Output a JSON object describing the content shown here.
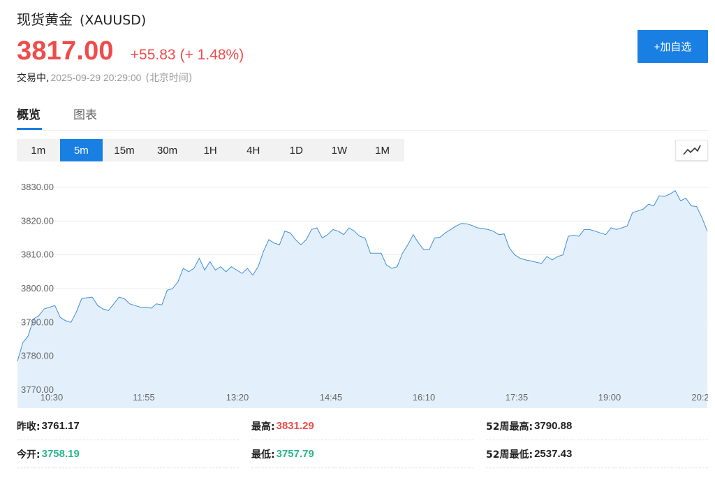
{
  "header": {
    "name": "现货黄金",
    "symbol": "(XAUUSD)",
    "price": "3817.00",
    "change": "+55.83",
    "change_pct": "(+ 1.48%)",
    "status": "交易中,",
    "time": "2025-09-29 20:29:00",
    "timezone": "(北京时间)",
    "add_button": "+加自选"
  },
  "tabs": [
    {
      "label": "概览",
      "active": true
    },
    {
      "label": "图表",
      "active": false
    }
  ],
  "periods": [
    "1m",
    "5m",
    "15m",
    "30m",
    "1H",
    "4H",
    "1D",
    "1W",
    "1M"
  ],
  "active_period": "5m",
  "chart_type_icon": "line-chart-icon",
  "colors": {
    "up": "#f04b4b",
    "down": "#2bb58a",
    "accent": "#1a7fe3",
    "line": "#3d8fd6",
    "area": "#e3f0fc"
  },
  "chart_data": {
    "type": "area",
    "x_ticks": [
      "10:30",
      "11:55",
      "13:20",
      "14:45",
      "16:10",
      "17:35",
      "19:00",
      "20:2"
    ],
    "y_ticks": [
      "3830.00",
      "3820.00",
      "3810.00",
      "3800.00",
      "3790.00",
      "3780.00",
      "3770.00"
    ],
    "ylim": [
      3770,
      3830
    ],
    "grid": true,
    "values": [
      3778.5,
      3784,
      3786,
      3791,
      3792,
      3794,
      3794.5,
      3795,
      3791.5,
      3790.5,
      3790,
      3793,
      3797,
      3797.3,
      3797.5,
      3795,
      3794,
      3793.5,
      3795.5,
      3797.5,
      3797,
      3795.5,
      3795,
      3794.5,
      3794.5,
      3794.2,
      3795.5,
      3795.2,
      3799.5,
      3800,
      3802,
      3806,
      3805,
      3806,
      3809,
      3805.5,
      3808,
      3805.5,
      3806.5,
      3805,
      3806.5,
      3805.5,
      3804.5,
      3806,
      3804,
      3806.5,
      3811,
      3814.5,
      3813.5,
      3813,
      3817,
      3816.5,
      3814.5,
      3813,
      3814.5,
      3817.5,
      3818,
      3815,
      3816,
      3817.5,
      3817,
      3816,
      3818,
      3817,
      3815.5,
      3815,
      3810.5,
      3810.5,
      3810.5,
      3807,
      3806,
      3806.5,
      3810.5,
      3813,
      3816,
      3813.5,
      3811.5,
      3811.5,
      3815,
      3815.2,
      3816.5,
      3817.5,
      3818.5,
      3819.3,
      3819.2,
      3818.7,
      3818,
      3817.8,
      3817.5,
      3817,
      3816,
      3816.2,
      3812,
      3810,
      3809,
      3808.5,
      3808.2,
      3807.8,
      3807.5,
      3809.5,
      3808.5,
      3809.5,
      3810,
      3815.5,
      3815.8,
      3815.5,
      3817.5,
      3817.5,
      3817,
      3816.5,
      3816,
      3818,
      3817.5,
      3818,
      3818.5,
      3822.5,
      3823,
      3823.5,
      3825,
      3824.5,
      3827.5,
      3827.3,
      3828,
      3829,
      3826,
      3826.8,
      3824.5,
      3824.3,
      3821,
      3817
    ]
  },
  "stats": [
    {
      "label": "昨收:",
      "value": "3761.17",
      "tone": "dark"
    },
    {
      "label": "最高:",
      "value": "3831.29",
      "tone": "red"
    },
    {
      "label": "52周最高:",
      "value": "3790.88",
      "tone": "dark"
    },
    {
      "label": "今开:",
      "value": "3758.19",
      "tone": "green"
    },
    {
      "label": "最低:",
      "value": "3757.79",
      "tone": "green"
    },
    {
      "label": "52周最低:",
      "value": "2537.43",
      "tone": "dark"
    }
  ]
}
